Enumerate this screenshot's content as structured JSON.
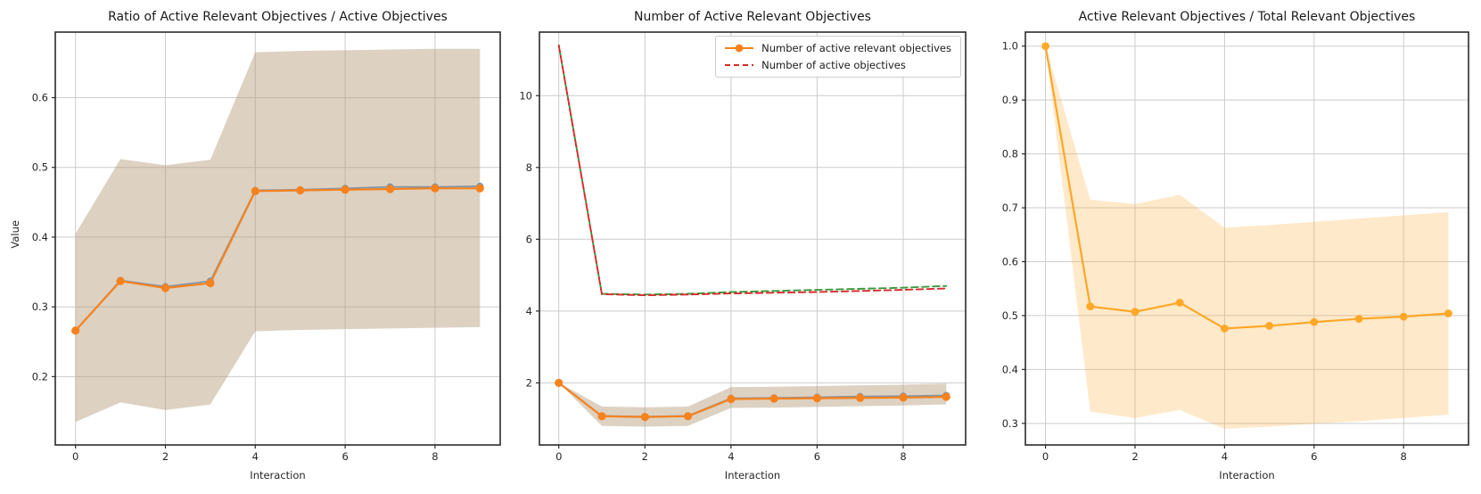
{
  "figure": {
    "background": "#ffffff",
    "grid_color": "#cccccc",
    "spine_color": "#2b2b2b",
    "tick_text_color": "#262626"
  },
  "chart_data": [
    {
      "type": "line",
      "title": "Ratio of Active Relevant Objectives / Active Objectives",
      "xlabel": "Interaction",
      "ylabel": "Value",
      "grid": true,
      "x": [
        0,
        1,
        2,
        3,
        4,
        5,
        6,
        7,
        8,
        9
      ],
      "xlim": [
        -0.45,
        9.45
      ],
      "ylim": [
        0.102,
        0.694
      ],
      "xticks": {
        "values": [
          0,
          2,
          4,
          6,
          8
        ],
        "labels": [
          "0",
          "2",
          "4",
          "6",
          "8"
        ]
      },
      "yticks": {
        "values": [
          0.2,
          0.3,
          0.4,
          0.5,
          0.6
        ],
        "labels": [
          "0.2",
          "0.3",
          "0.4",
          "0.5",
          "0.6"
        ]
      },
      "band": {
        "lower": [
          0.135,
          0.163,
          0.152,
          0.16,
          0.265,
          0.267,
          0.268,
          0.269,
          0.27,
          0.271
        ],
        "upper": [
          0.405,
          0.512,
          0.503,
          0.511,
          0.665,
          0.667,
          0.668,
          0.669,
          0.67,
          0.67
        ],
        "fill": "#b39877",
        "opacity": 0.45
      },
      "series": [
        {
          "name": "ratio-secondary",
          "color": "#7e93a8",
          "style": "solid",
          "marker": "circle",
          "marker_r": 4.0,
          "width": 1.7,
          "values": [
            0.266,
            0.338,
            0.329,
            0.337,
            0.467,
            0.468,
            0.47,
            0.472,
            0.472,
            0.473
          ]
        },
        {
          "name": "ratio-mean",
          "color": "#f6821e",
          "style": "solid",
          "marker": "circle",
          "marker_r": 4.6,
          "width": 2.2,
          "values": [
            0.266,
            0.337,
            0.327,
            0.334,
            0.466,
            0.467,
            0.468,
            0.469,
            0.47,
            0.47
          ]
        }
      ]
    },
    {
      "type": "line",
      "title": "Number of Active Relevant Objectives",
      "xlabel": "Interaction",
      "ylabel": "",
      "grid": true,
      "x": [
        0,
        1,
        2,
        3,
        4,
        5,
        6,
        7,
        8,
        9
      ],
      "xlim": [
        -0.45,
        9.45
      ],
      "ylim": [
        0.27,
        11.77
      ],
      "xticks": {
        "values": [
          0,
          2,
          4,
          6,
          8
        ],
        "labels": [
          "0",
          "2",
          "4",
          "6",
          "8"
        ]
      },
      "yticks": {
        "values": [
          2,
          4,
          6,
          8,
          10
        ],
        "labels": [
          "2",
          "4",
          "6",
          "8",
          "10"
        ]
      },
      "band": {
        "lower": [
          2.0,
          0.8,
          0.78,
          0.8,
          1.3,
          1.31,
          1.33,
          1.35,
          1.37,
          1.4
        ],
        "upper": [
          2.0,
          1.34,
          1.32,
          1.34,
          1.88,
          1.89,
          1.91,
          1.93,
          1.95,
          1.98
        ],
        "fill": "#b39877",
        "opacity": 0.45
      },
      "series": [
        {
          "name": "active-objectives-secondary",
          "color": "#3a9a3a",
          "style": "dashed",
          "marker": null,
          "marker_r": 0,
          "width": 1.9,
          "values": [
            11.4,
            4.48,
            4.46,
            4.48,
            4.53,
            4.56,
            4.59,
            4.62,
            4.65,
            4.7
          ]
        },
        {
          "name": "active-objectives",
          "color": "#d62b2b",
          "style": "dashed",
          "marker": null,
          "marker_r": 0,
          "width": 1.9,
          "values": [
            11.4,
            4.47,
            4.44,
            4.46,
            4.49,
            4.51,
            4.53,
            4.56,
            4.59,
            4.63
          ]
        },
        {
          "name": "active-relevant-secondary",
          "color": "#7e93a8",
          "style": "solid",
          "marker": "circle",
          "marker_r": 4.0,
          "width": 1.7,
          "values": [
            2.0,
            1.08,
            1.06,
            1.08,
            1.57,
            1.58,
            1.6,
            1.62,
            1.63,
            1.65
          ]
        },
        {
          "name": "active-relevant",
          "color": "#f6821e",
          "style": "solid",
          "marker": "circle",
          "marker_r": 4.6,
          "width": 2.2,
          "values": [
            2.0,
            1.07,
            1.05,
            1.07,
            1.55,
            1.56,
            1.57,
            1.58,
            1.59,
            1.61
          ]
        }
      ],
      "legend": {
        "position": "top-right",
        "entries": [
          {
            "label": "Number of active relevant objectives",
            "swatch": "line-marker",
            "color": "#f6821e"
          },
          {
            "label": "Number of active objectives",
            "swatch": "dashed",
            "color": "#d62b2b"
          }
        ]
      }
    },
    {
      "type": "line",
      "title": "Active Relevant Objectives / Total Relevant Objectives",
      "xlabel": "Interaction",
      "ylabel": "",
      "grid": true,
      "x": [
        0,
        1,
        2,
        3,
        4,
        5,
        6,
        7,
        8,
        9
      ],
      "xlim": [
        -0.45,
        9.45
      ],
      "ylim": [
        0.26,
        1.026
      ],
      "xticks": {
        "values": [
          0,
          2,
          4,
          6,
          8
        ],
        "labels": [
          "0",
          "2",
          "4",
          "6",
          "8"
        ]
      },
      "yticks": {
        "values": [
          0.3,
          0.4,
          0.5,
          0.6,
          0.7,
          0.8,
          0.9,
          1.0
        ],
        "labels": [
          "0.3",
          "0.4",
          "0.5",
          "0.6",
          "0.7",
          "0.8",
          "0.9",
          "1.0"
        ]
      },
      "band": {
        "lower": [
          1.0,
          0.322,
          0.31,
          0.325,
          0.29,
          0.294,
          0.299,
          0.304,
          0.31,
          0.316
        ],
        "upper": [
          1.0,
          0.715,
          0.707,
          0.724,
          0.663,
          0.668,
          0.674,
          0.68,
          0.686,
          0.692
        ],
        "fill": "#fbb03f",
        "opacity": 0.28
      },
      "series": [
        {
          "name": "fraction-total",
          "color": "#ffa726",
          "style": "solid",
          "marker": "circle",
          "marker_r": 4.4,
          "width": 2.2,
          "values": [
            1.0,
            0.517,
            0.507,
            0.524,
            0.476,
            0.481,
            0.488,
            0.494,
            0.498,
            0.504
          ]
        }
      ]
    }
  ]
}
